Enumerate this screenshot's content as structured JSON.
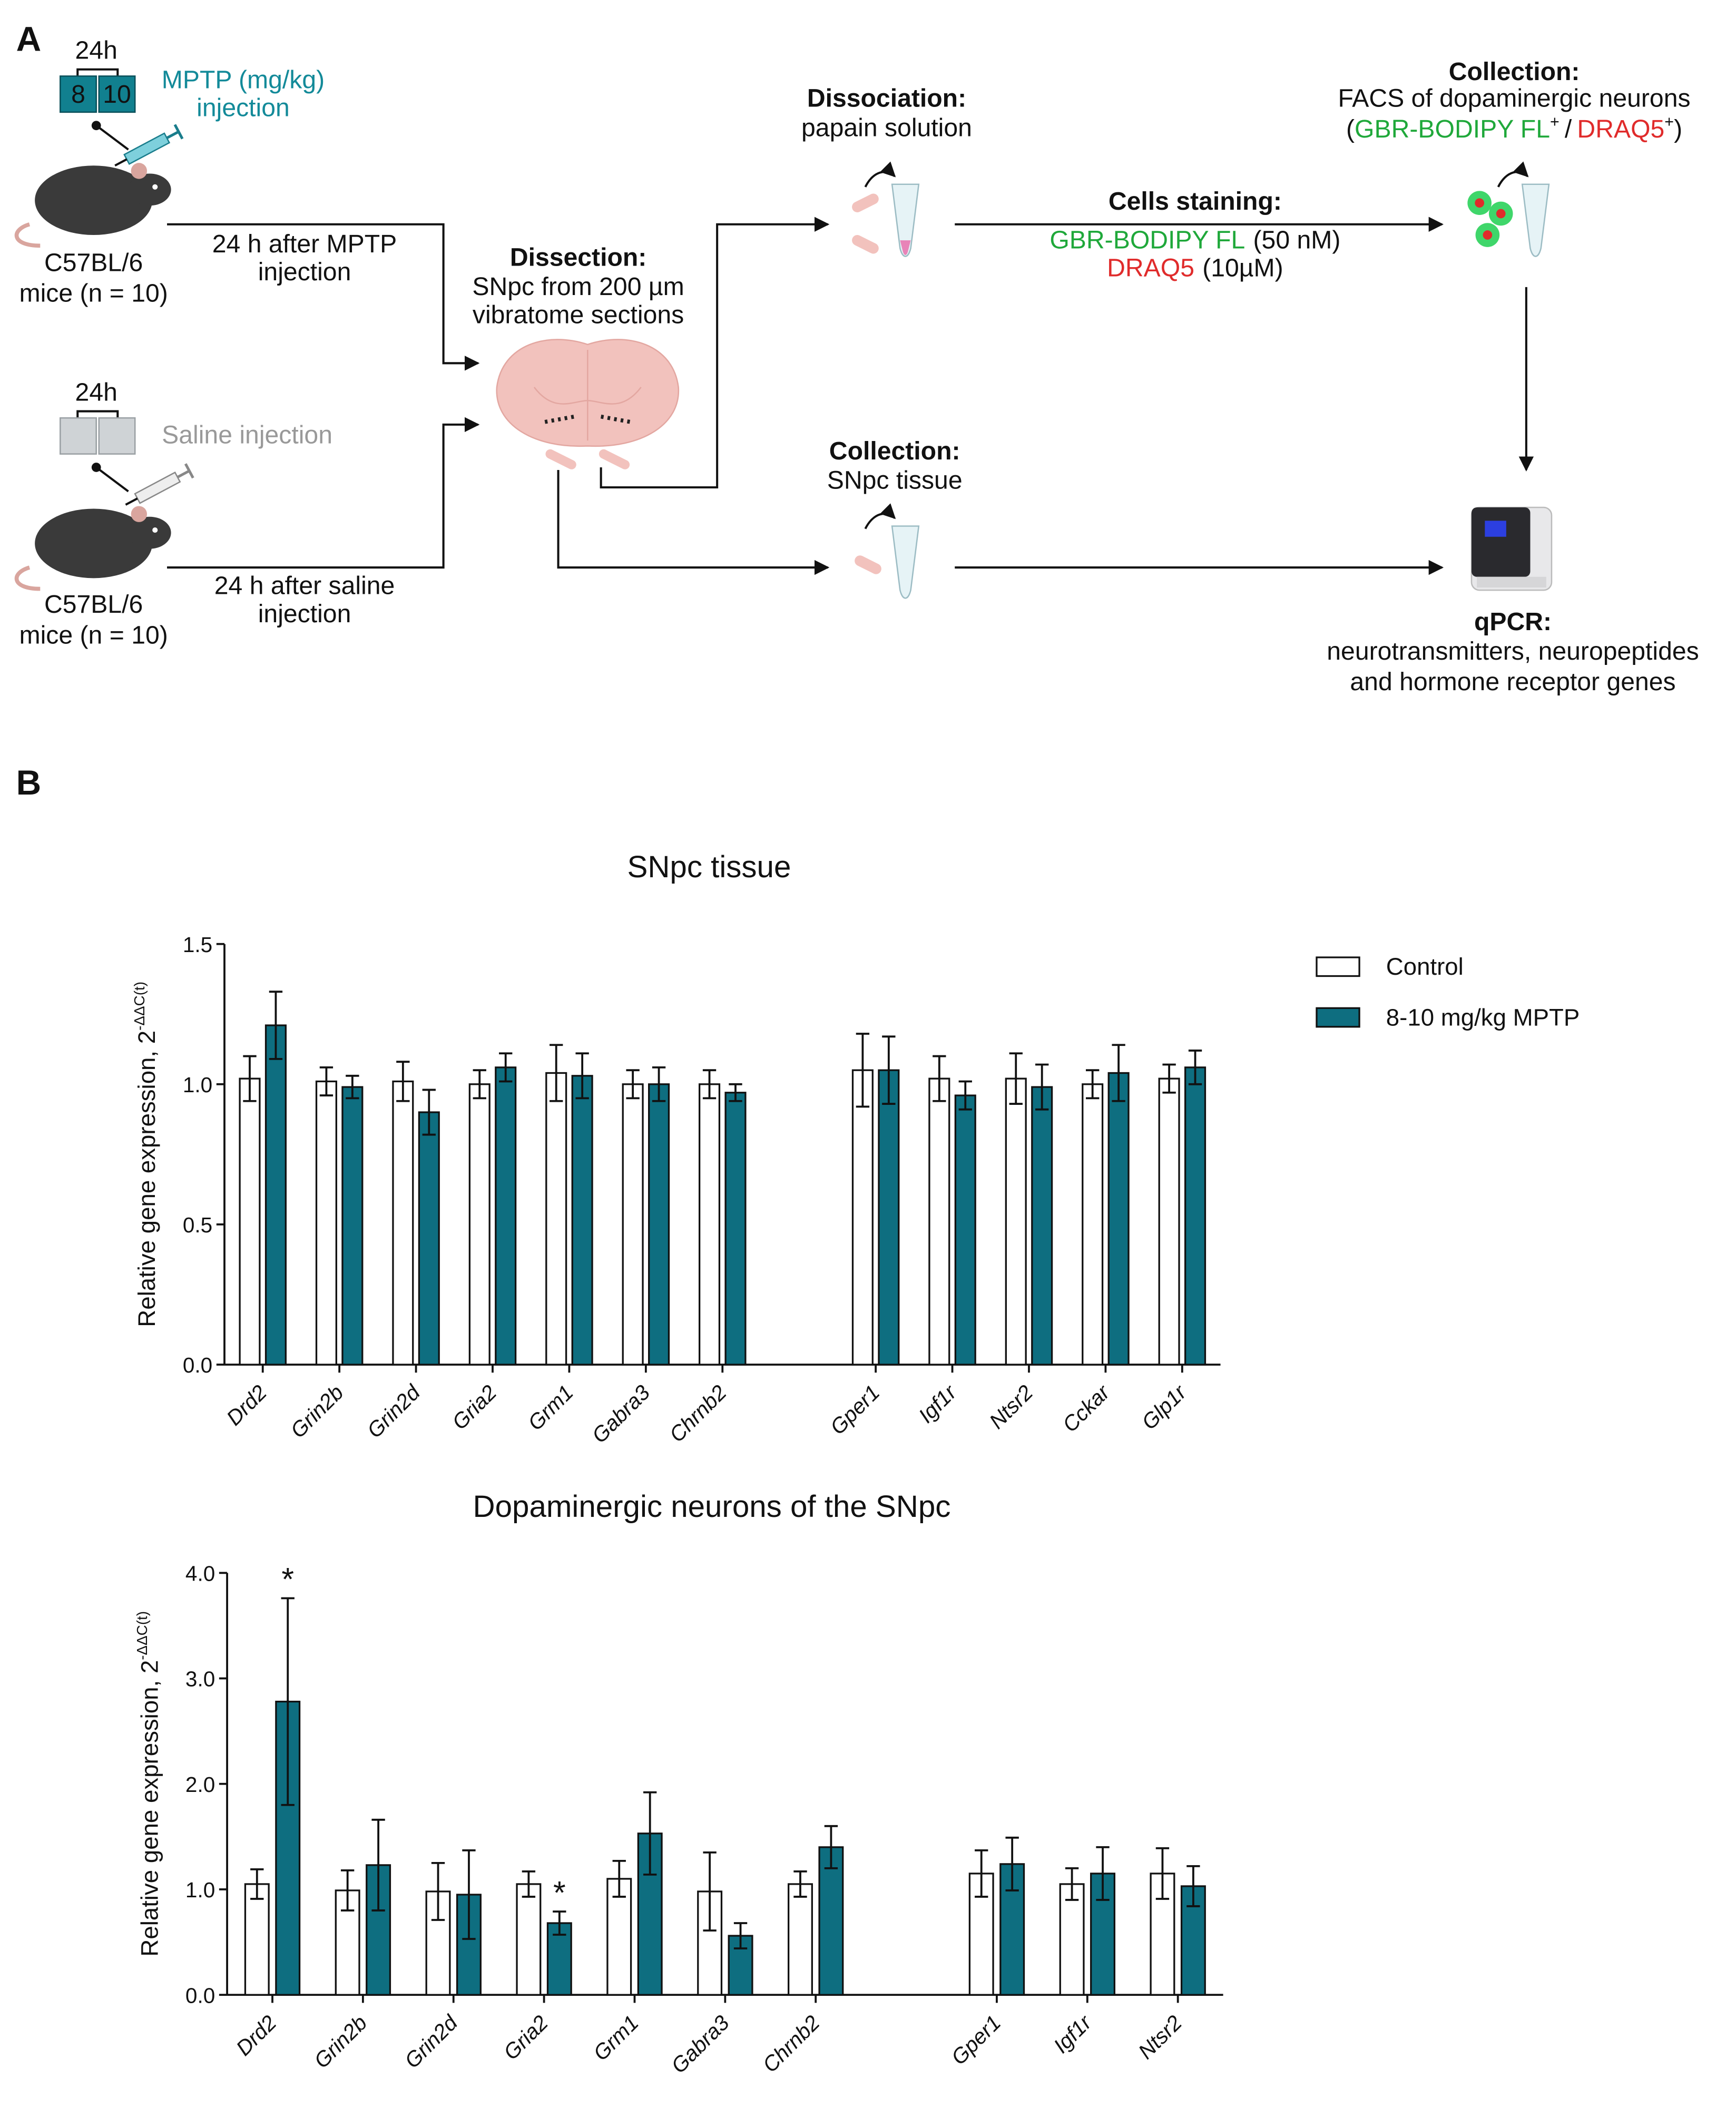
{
  "panels": [
    "A",
    "B"
  ],
  "diagram": {
    "mptp_group": {
      "interval": "24h",
      "doses": [
        "8",
        "10"
      ],
      "label": [
        "MPTP (mg/kg)",
        "injection"
      ],
      "mouse": [
        "C57BL/6",
        "mice (n = 10)"
      ],
      "arrow": [
        "24 h after MPTP",
        "injection"
      ]
    },
    "saline_group": {
      "interval": "24h",
      "label": "Saline injection",
      "mouse": [
        "C57BL/6",
        "mice (n = 10)"
      ],
      "arrow": [
        "24 h after saline",
        "injection"
      ]
    },
    "dissection": {
      "title": "Dissection:",
      "text": [
        "SNpc from 200 µm",
        "vibratome sections"
      ]
    },
    "dissociation": {
      "title": "Dissociation:",
      "text": "papain solution"
    },
    "staining": {
      "title": "Cells staining:",
      "dye1": "GBR-BODIPY FL",
      "dye1_conc": "(50 nM)",
      "dye2": "DRAQ5",
      "dye2_conc": "(10µM)"
    },
    "facs": {
      "title": "Collection:",
      "text": "FACS of dopaminergic neurons",
      "markers": [
        "(",
        "GBR-BODIPY FL",
        "+",
        "/",
        "DRAQ5",
        "+",
        ")"
      ]
    },
    "tissue": {
      "title": "Collection:",
      "text": "SNpc tissue"
    },
    "qpcr": {
      "title": "qPCR:",
      "text": [
        "neurotransmitters, neuropeptides",
        "and hormone receptor genes"
      ]
    }
  },
  "chart_data": [
    {
      "type": "bar",
      "title": "SNpc tissue",
      "ylabel": "Relative gene expression, 2",
      "ylabel_sup": "-ΔΔC(t)",
      "categories": [
        "Drd2",
        "Grin2b",
        "Grin2d",
        "Gria2",
        "Grm1",
        "Gabra3",
        "Chrnb2",
        null,
        "Gper1",
        "Igf1r",
        "Ntsr2",
        "Cckar",
        "Glp1r"
      ],
      "series": [
        {
          "name": "Control",
          "color": "#ffffff",
          "values": [
            1.02,
            1.01,
            1.01,
            1.0,
            1.04,
            1.0,
            1.0,
            null,
            1.05,
            1.02,
            1.02,
            1.0,
            1.02
          ],
          "errors": [
            0.08,
            0.05,
            0.07,
            0.05,
            0.1,
            0.05,
            0.05,
            null,
            0.13,
            0.08,
            0.09,
            0.05,
            0.05
          ]
        },
        {
          "name": "8-10 mg/kg MPTP",
          "color": "#0e6e80",
          "values": [
            1.21,
            0.99,
            0.9,
            1.06,
            1.03,
            1.0,
            0.97,
            null,
            1.05,
            0.96,
            0.99,
            1.04,
            1.06
          ],
          "errors": [
            0.12,
            0.04,
            0.08,
            0.05,
            0.08,
            0.06,
            0.03,
            null,
            0.12,
            0.05,
            0.08,
            0.1,
            0.06
          ]
        }
      ],
      "ylim": [
        0,
        1.5
      ],
      "yticks": [
        {
          "value": 0,
          "label": "0.0"
        },
        0.5,
        {
          "value": 1,
          "label": "1.0"
        },
        1.5
      ],
      "legend": "upper right",
      "error_bars": true
    },
    {
      "type": "bar",
      "title": "Dopaminergic neurons of the SNpc",
      "ylabel": "Relative gene expression, 2",
      "ylabel_sup": "-ΔΔC(t)",
      "categories": [
        "Drd2",
        "Grin2b",
        "Grin2d",
        "Gria2",
        "Grm1",
        "Gabra3",
        "Chrnb2",
        null,
        "Gper1",
        "Igf1r",
        "Ntsr2"
      ],
      "series": [
        {
          "color": "#ffffff",
          "values": [
            1.05,
            0.99,
            0.98,
            1.05,
            1.1,
            0.98,
            1.05,
            null,
            1.15,
            1.05,
            1.15
          ],
          "errors": [
            0.14,
            0.19,
            0.27,
            0.12,
            0.17,
            0.37,
            0.12,
            null,
            0.22,
            0.15,
            0.24
          ]
        },
        {
          "color": "#0e6e80",
          "values": [
            2.78,
            1.23,
            0.95,
            0.68,
            1.53,
            0.56,
            1.4,
            null,
            1.24,
            1.15,
            1.03
          ],
          "errors": [
            0.98,
            0.43,
            0.42,
            0.11,
            0.39,
            0.12,
            0.2,
            null,
            0.25,
            0.25,
            0.19
          ]
        }
      ],
      "ylim": [
        0,
        4
      ],
      "yticks": [
        {
          "value": 0,
          "label": "0.0"
        },
        {
          "value": 1,
          "label": "1.0"
        },
        {
          "value": 2,
          "label": "2.0"
        },
        {
          "value": 3,
          "label": "3.0"
        },
        {
          "value": 4,
          "label": "4.0"
        }
      ],
      "error_bars": true,
      "annotations": [
        {
          "text": "*",
          "category": "Drd2",
          "series": 1
        },
        {
          "text": "*",
          "category": "Gria2",
          "series": 1
        }
      ]
    }
  ]
}
